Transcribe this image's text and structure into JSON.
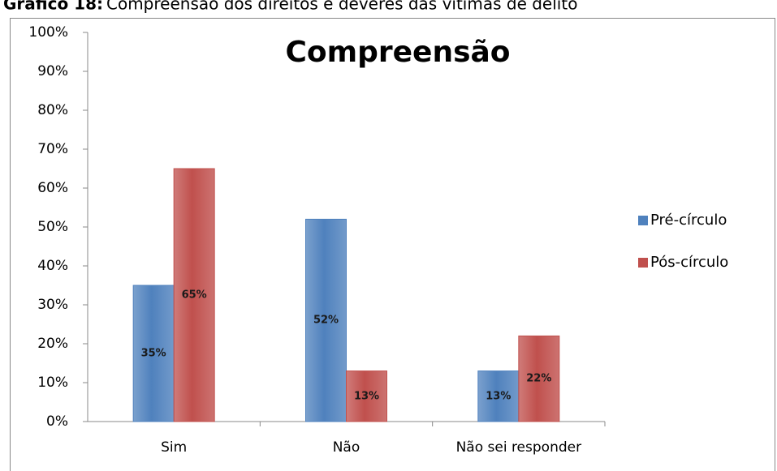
{
  "caption": {
    "label": "Gráfico 18:",
    "text": "Compreensão dos direitos e deveres das vítimas de delito"
  },
  "chart_data": {
    "type": "bar",
    "title": "Compreensão",
    "categories": [
      "Sim",
      "Não",
      "Não sei responder"
    ],
    "series": [
      {
        "name": "Pré-círculo",
        "color": "#4f81bd",
        "values": [
          35,
          52,
          13
        ],
        "value_labels": [
          "35%",
          "52%",
          "13%"
        ]
      },
      {
        "name": "Pós-círculo",
        "color": "#c0504d",
        "values": [
          65,
          13,
          22
        ],
        "value_labels": [
          "65%",
          "13%",
          "22%"
        ]
      }
    ],
    "ylim": [
      0,
      100
    ],
    "yticks": [
      {
        "value": 0,
        "label": "0%"
      },
      {
        "value": 10,
        "label": "10%"
      },
      {
        "value": 20,
        "label": "20%"
      },
      {
        "value": 30,
        "label": "30%"
      },
      {
        "value": 40,
        "label": "40%"
      },
      {
        "value": 50,
        "label": "50%"
      },
      {
        "value": 60,
        "label": "60%"
      },
      {
        "value": 70,
        "label": "70%"
      },
      {
        "value": 80,
        "label": "80%"
      },
      {
        "value": 90,
        "label": "90%"
      },
      {
        "value": 100,
        "label": "100%"
      }
    ],
    "legend": "right"
  }
}
